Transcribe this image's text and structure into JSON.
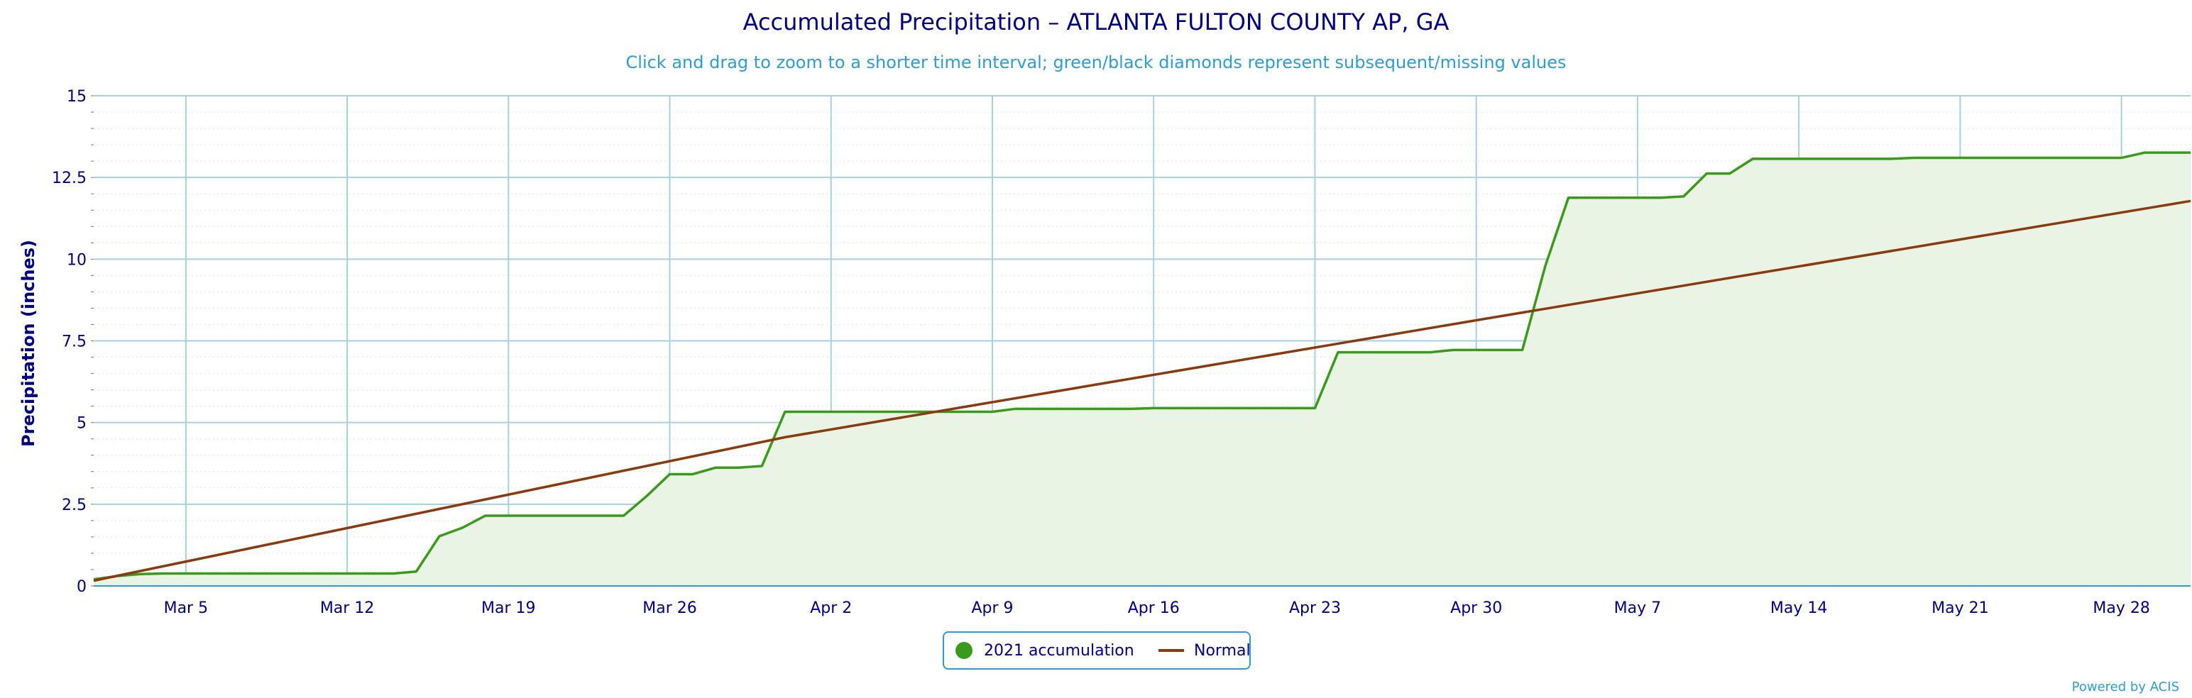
{
  "chart_data": {
    "type": "area",
    "title": "Accumulated Precipitation – ATLANTA FULTON COUNTY AP, GA",
    "subtitle": "Click and drag to zoom to a shorter time interval; green/black diamonds represent subsequent/missing values",
    "xlabel": "",
    "ylabel": "Precipitation (inches)",
    "ylim": [
      0,
      15
    ],
    "xlim": [
      "2021-03-01",
      "2021-05-31"
    ],
    "grid": true,
    "legend_position": "bottom-center",
    "x_ticks": [
      {
        "date": "2021-03-05",
        "label": "Mar 5"
      },
      {
        "date": "2021-03-12",
        "label": "Mar 12"
      },
      {
        "date": "2021-03-19",
        "label": "Mar 19"
      },
      {
        "date": "2021-03-26",
        "label": "Mar 26"
      },
      {
        "date": "2021-04-02",
        "label": "Apr 2"
      },
      {
        "date": "2021-04-09",
        "label": "Apr 9"
      },
      {
        "date": "2021-04-16",
        "label": "Apr 16"
      },
      {
        "date": "2021-04-23",
        "label": "Apr 23"
      },
      {
        "date": "2021-04-30",
        "label": "Apr 30"
      },
      {
        "date": "2021-05-07",
        "label": "May 7"
      },
      {
        "date": "2021-05-14",
        "label": "May 14"
      },
      {
        "date": "2021-05-21",
        "label": "May 21"
      },
      {
        "date": "2021-05-28",
        "label": "May 28"
      }
    ],
    "y_ticks": [
      {
        "value": 0,
        "label": "0"
      },
      {
        "value": 2.5,
        "label": "2.5"
      },
      {
        "value": 5,
        "label": "5"
      },
      {
        "value": 7.5,
        "label": "7.5"
      },
      {
        "value": 10,
        "label": "10"
      },
      {
        "value": 12.5,
        "label": "12.5"
      },
      {
        "value": 15,
        "label": "15"
      }
    ],
    "series": [
      {
        "name": "2021 accumulation",
        "color": "#3a9a1a",
        "fill": "#eaf4e4",
        "points": [
          [
            "2021-03-01",
            0.2
          ],
          [
            "2021-03-02",
            0.3
          ],
          [
            "2021-03-03",
            0.36
          ],
          [
            "2021-03-04",
            0.38
          ],
          [
            "2021-03-14",
            0.38
          ],
          [
            "2021-03-15",
            0.44
          ],
          [
            "2021-03-16",
            1.52
          ],
          [
            "2021-03-17",
            1.78
          ],
          [
            "2021-03-18",
            2.15
          ],
          [
            "2021-03-24",
            2.15
          ],
          [
            "2021-03-25",
            2.75
          ],
          [
            "2021-03-26",
            3.42
          ],
          [
            "2021-03-27",
            3.42
          ],
          [
            "2021-03-28",
            3.62
          ],
          [
            "2021-03-29",
            3.62
          ],
          [
            "2021-03-30",
            3.67
          ],
          [
            "2021-03-31",
            5.33
          ],
          [
            "2021-04-09",
            5.33
          ],
          [
            "2021-04-10",
            5.42
          ],
          [
            "2021-04-15",
            5.42
          ],
          [
            "2021-04-16",
            5.44
          ],
          [
            "2021-04-23",
            5.44
          ],
          [
            "2021-04-24",
            7.15
          ],
          [
            "2021-04-28",
            7.15
          ],
          [
            "2021-04-29",
            7.22
          ],
          [
            "2021-05-02",
            7.22
          ],
          [
            "2021-05-03",
            9.8
          ],
          [
            "2021-05-04",
            11.88
          ],
          [
            "2021-05-08",
            11.88
          ],
          [
            "2021-05-09",
            11.92
          ],
          [
            "2021-05-10",
            12.62
          ],
          [
            "2021-05-11",
            12.62
          ],
          [
            "2021-05-12",
            13.07
          ],
          [
            "2021-05-18",
            13.07
          ],
          [
            "2021-05-19",
            13.1
          ],
          [
            "2021-05-28",
            13.1
          ],
          [
            "2021-05-29",
            13.26
          ],
          [
            "2021-05-31",
            13.26
          ]
        ]
      },
      {
        "name": "Normal",
        "color": "#8b3a0f",
        "points": [
          [
            "2021-03-01",
            0.16
          ],
          [
            "2021-03-31",
            4.55
          ],
          [
            "2021-04-30",
            8.13
          ],
          [
            "2021-05-31",
            11.78
          ]
        ]
      }
    ]
  },
  "credits": "Powered by ACIS"
}
